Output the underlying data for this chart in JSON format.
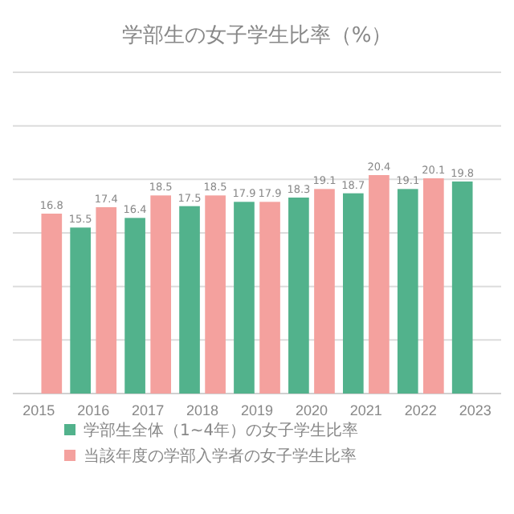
{
  "chart_data": {
    "type": "bar",
    "title": "学部生の女子学生比率（%）",
    "categories": [
      "2015",
      "2016",
      "2017",
      "2018",
      "2019",
      "2020",
      "2021",
      "2022",
      "2023"
    ],
    "series": [
      {
        "name": "学部生全体（1~4年）の女子学生比率",
        "color": "#52b28c",
        "values": [
          null,
          15.5,
          16.4,
          17.5,
          17.9,
          18.3,
          18.7,
          19.1,
          19.8
        ]
      },
      {
        "name": "当該年度の学部入学者の女子学生比率",
        "color": "#f4a19e",
        "values": [
          16.8,
          17.4,
          18.5,
          18.5,
          17.9,
          19.1,
          20.4,
          20.1,
          null
        ]
      }
    ],
    "ylim": [
      0,
      30
    ],
    "yticks": [
      {
        "value": 0,
        "label": null
      },
      {
        "value": 5,
        "label": null
      },
      {
        "value": 10,
        "label": null
      },
      {
        "value": 15,
        "label": null
      },
      {
        "value": 20,
        "label": null
      },
      {
        "value": 25,
        "label": null
      },
      {
        "value": 30,
        "label": null
      }
    ],
    "tick_labels": "x",
    "grid": "y",
    "data_labels": true,
    "legend": "bottom"
  }
}
